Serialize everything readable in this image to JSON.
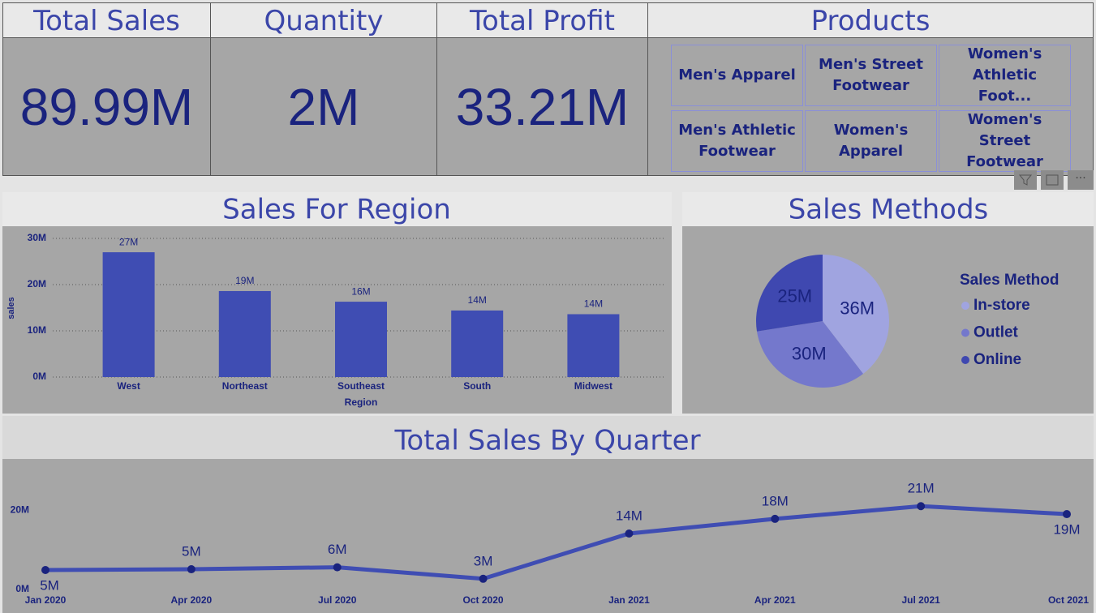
{
  "cards": [
    {
      "title": "Total Sales",
      "value": "89.99M"
    },
    {
      "title": "Quantity",
      "value": "2M"
    },
    {
      "title": "Total Profit",
      "value": "33.21M"
    }
  ],
  "products": {
    "title": "Products",
    "items": [
      "Men's Apparel",
      "Men's Street Footwear",
      "Women's Athletic Foot...",
      "Men's Athletic Footwear",
      "Women's Apparel",
      "Women's Street Footwear"
    ]
  },
  "chart_data": [
    {
      "type": "bar",
      "title": "Sales For Region",
      "xlabel": "Region",
      "ylabel": "sales",
      "categories": [
        "West",
        "Northeast",
        "Southeast",
        "South",
        "Midwest"
      ],
      "values": [
        27000000,
        18600000,
        16300000,
        14400000,
        13600000
      ],
      "value_labels": [
        "27M",
        "19M",
        "16M",
        "14M",
        "14M"
      ],
      "color": "#3f4db3",
      "grid": true,
      "ylim": [
        0,
        30000000
      ],
      "yticks": [
        {
          "value": 0,
          "label": "0M"
        },
        {
          "value": 10000000,
          "label": "10M"
        },
        {
          "value": 20000000,
          "label": "20M"
        },
        {
          "value": 30000000,
          "label": "30M"
        }
      ]
    },
    {
      "type": "pie",
      "title": "Sales Methods",
      "legend_title": "Sales Method",
      "categories": [
        "In-store",
        "Outlet",
        "Online"
      ],
      "values": [
        36000000,
        30000000,
        25000000
      ],
      "value_labels": [
        "36M",
        "30M",
        "25M"
      ],
      "colors": [
        "#a0a4e0",
        "#7478cc",
        "#3f48b0"
      ]
    },
    {
      "type": "line",
      "title": "Total Sales By Quarter",
      "categories": [
        "Jan 2020",
        "Apr 2020",
        "Jul 2020",
        "Oct 2020",
        "Jan 2021",
        "Apr 2021",
        "Jul 2021",
        "Oct 2021"
      ],
      "values": [
        4900000,
        5100000,
        5600000,
        2700000,
        14100000,
        17800000,
        21000000,
        19000000
      ],
      "value_labels": [
        "5M",
        "5M",
        "6M",
        "3M",
        "14M",
        "18M",
        "21M",
        "19M"
      ],
      "color": "#3f4db3",
      "marker_color": "#1a237e",
      "ylim": [
        0,
        28000000
      ],
      "yticks": [
        {
          "value": 0,
          "label": "0M"
        },
        {
          "value": 20000000,
          "label": "20M"
        }
      ]
    }
  ]
}
